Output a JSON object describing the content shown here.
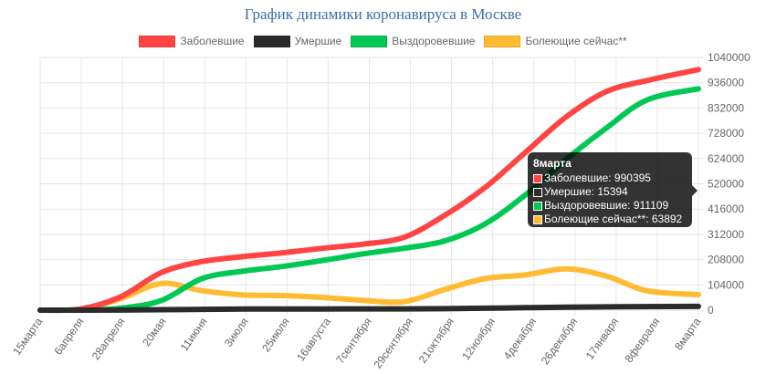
{
  "chart_data": {
    "type": "line",
    "title": "График динамики коронавируса в Москве",
    "legend_position": "top",
    "grid": true,
    "y_axis_side": "right",
    "ylim": [
      0,
      1040000
    ],
    "yticks": [
      0,
      104000,
      208000,
      312000,
      416000,
      520000,
      624000,
      728000,
      832000,
      936000,
      1040000
    ],
    "xtick_labels": [
      "15марта",
      "6апреля",
      "28апреля",
      "20мая",
      "11июня",
      "3июля",
      "25июля",
      "16августа",
      "7сентября",
      "29сентября",
      "21октября",
      "12ноября",
      "4декабря",
      "26декабря",
      "17января",
      "8февраля",
      "8марта"
    ],
    "x": [
      "2020-03-15",
      "2020-04-06",
      "2020-04-28",
      "2020-05-20",
      "2020-06-11",
      "2020-07-03",
      "2020-07-25",
      "2020-08-16",
      "2020-09-07",
      "2020-09-29",
      "2020-10-21",
      "2020-11-12",
      "2020-12-04",
      "2020-12-26",
      "2021-01-17",
      "2021-02-08",
      "2021-03-08"
    ],
    "series": [
      {
        "name": "Заболевшие",
        "color": "#ff4444",
        "values": [
          0,
          5000,
          56000,
          155000,
          200000,
          220000,
          236000,
          255000,
          272000,
          300000,
          390000,
          505000,
          650000,
          795000,
          900000,
          945000,
          990395
        ]
      },
      {
        "name": "Умершие",
        "color": "#2b2b2b",
        "values": [
          0,
          30,
          500,
          1700,
          3400,
          4500,
          4800,
          4900,
          5000,
          5200,
          6000,
          7800,
          10200,
          12300,
          13500,
          14600,
          15394
        ]
      },
      {
        "name": "Выздоровевшие",
        "color": "#00c853",
        "values": [
          0,
          500,
          8000,
          40000,
          130000,
          160000,
          180000,
          205000,
          232000,
          255000,
          285000,
          355000,
          475000,
          620000,
          750000,
          865000,
          911109
        ]
      },
      {
        "name": "Болеющие сейчас**",
        "color": "#ffbb33",
        "values": [
          0,
          4000,
          48000,
          110000,
          80000,
          63000,
          60000,
          52000,
          40000,
          35000,
          85000,
          130000,
          145000,
          170000,
          140000,
          80000,
          63892
        ]
      }
    ]
  },
  "tooltip": {
    "title": "8марта",
    "rows": [
      "Заболевшие: 990395",
      "Умершие: 15394",
      "Выздоровевшие: 911109",
      "Болеющие сейчас**: 63892"
    ]
  }
}
